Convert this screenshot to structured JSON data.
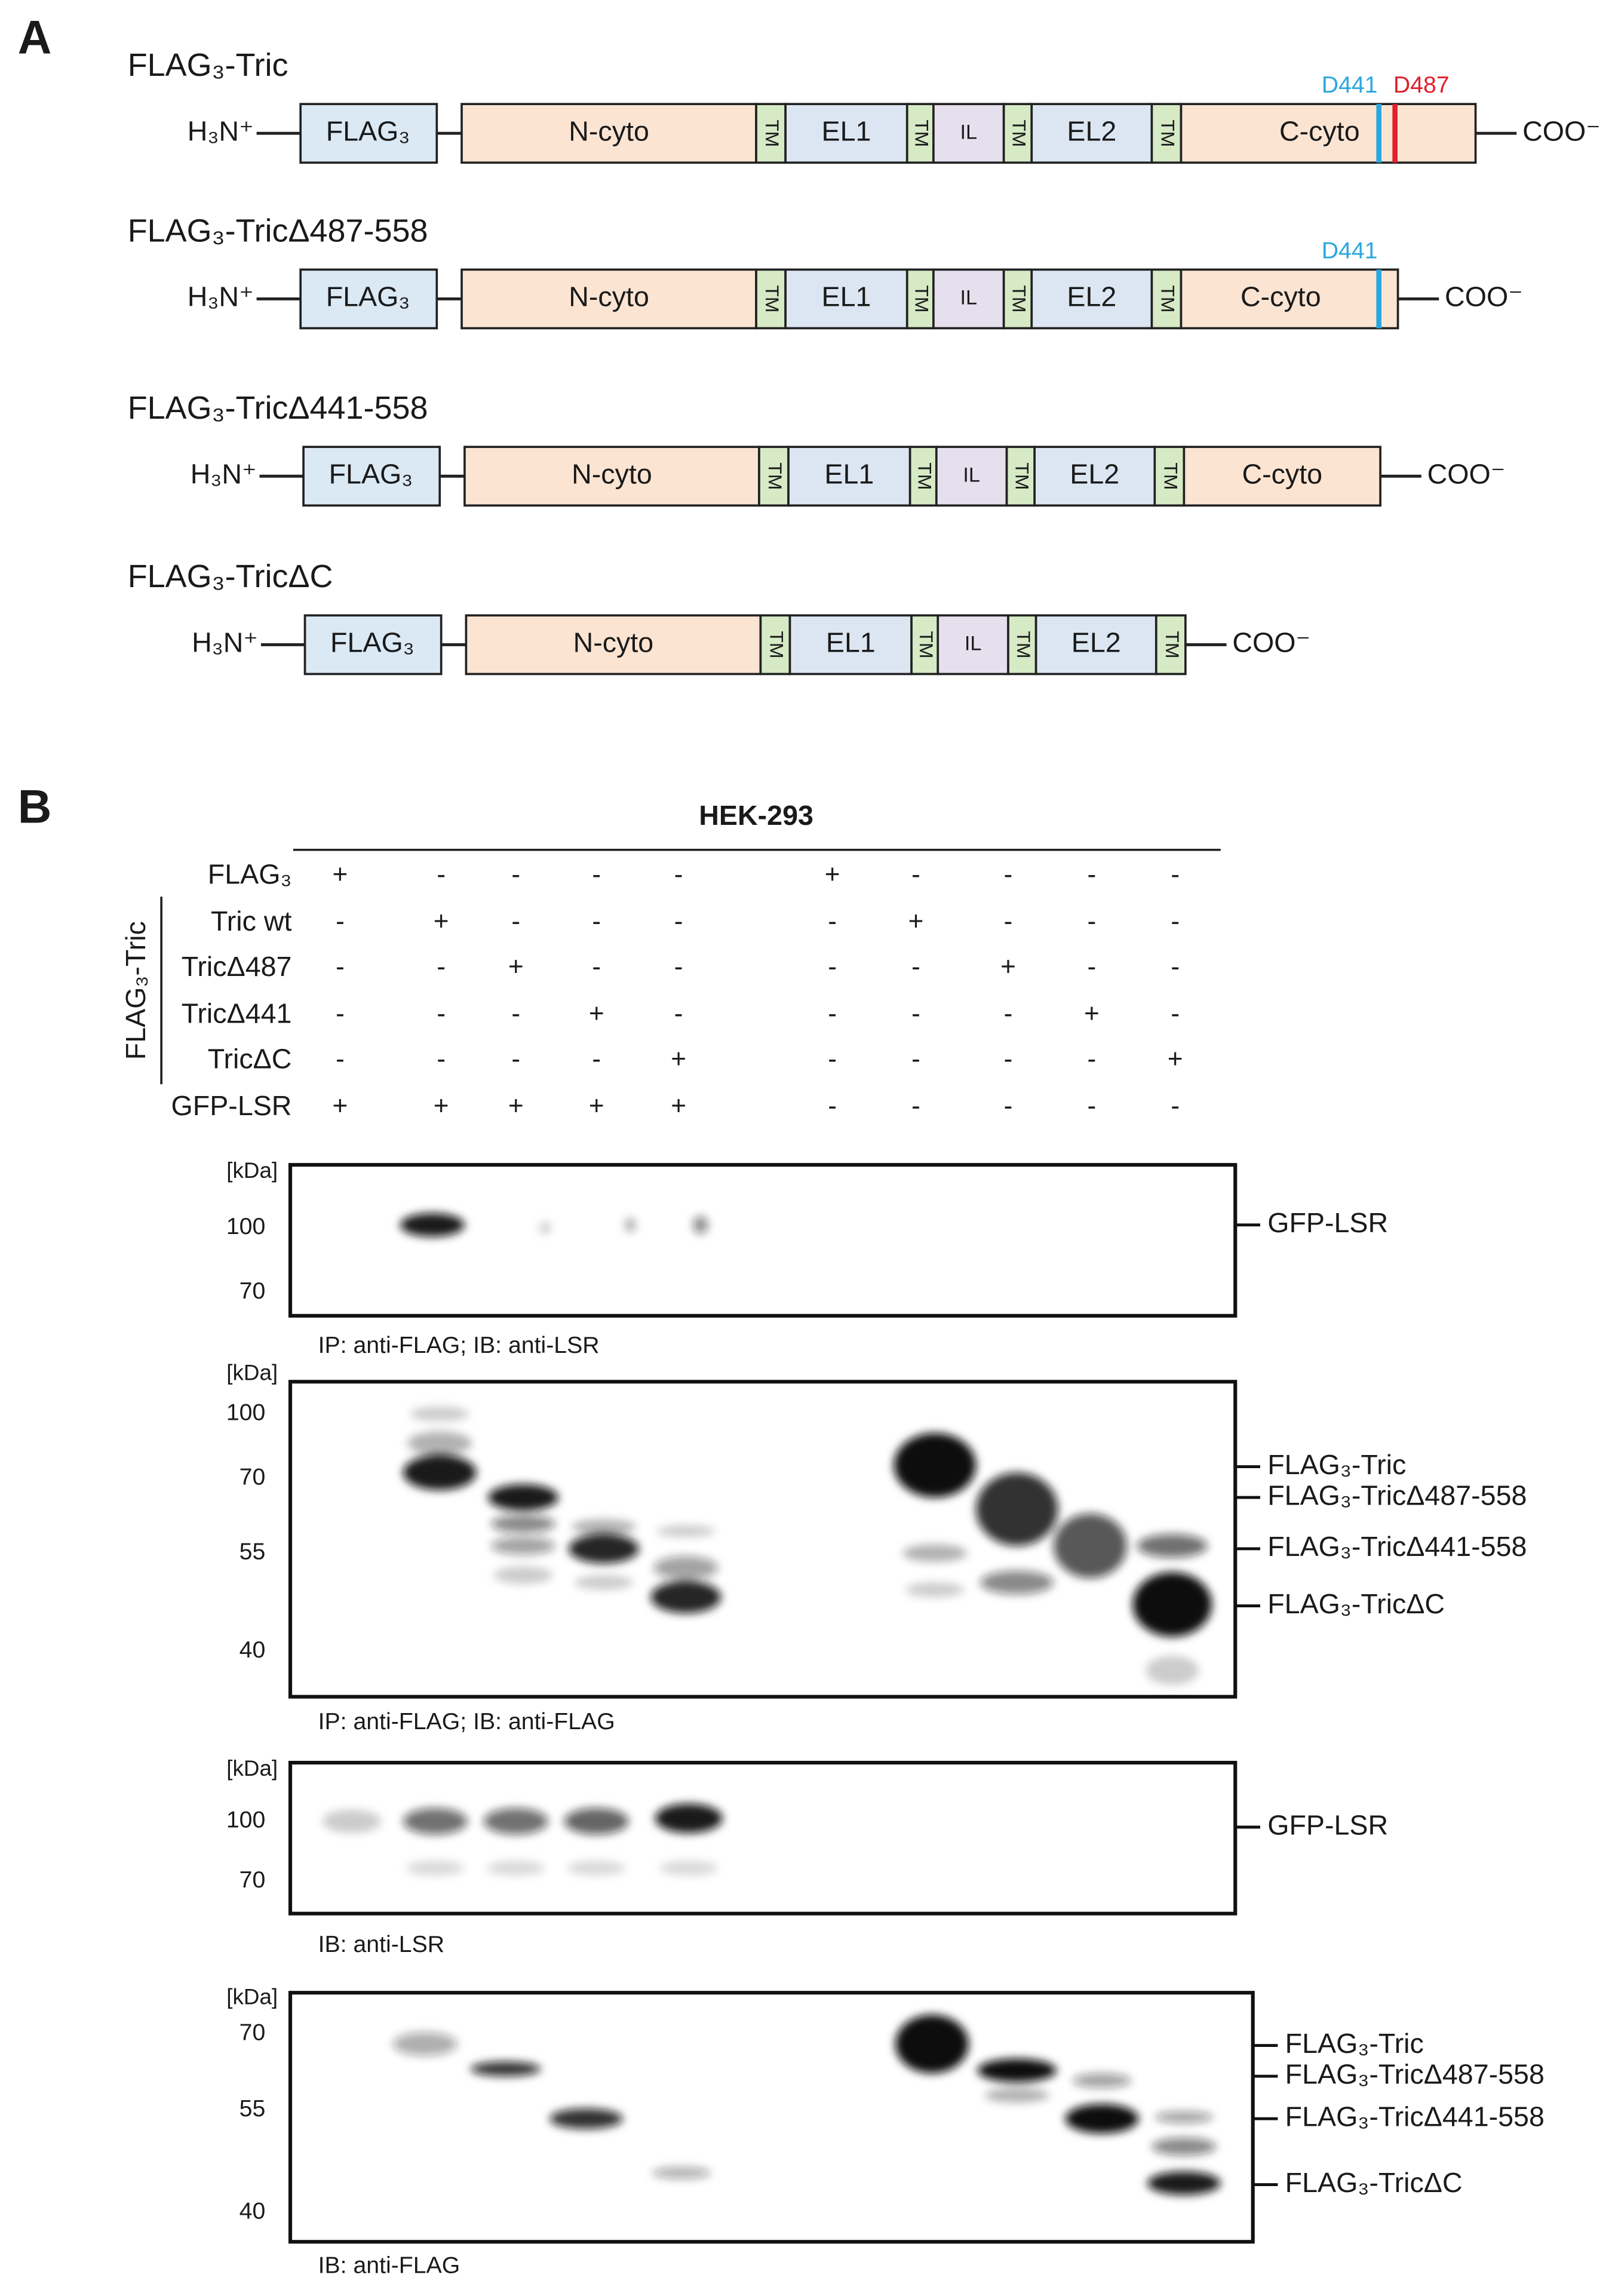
{
  "panel_a": {
    "label": "A",
    "constructs": [
      {
        "name": "FLAG₃-Tric",
        "n_terminus": "H₃N⁺",
        "c_terminus": "COO⁻",
        "domains": [
          "FLAG₃",
          "N-cyto",
          "TM",
          "EL1",
          "TM",
          "IL",
          "TM",
          "EL2",
          "TM",
          "C-cyto"
        ],
        "sites": [
          "D441",
          "D487"
        ]
      },
      {
        "name": "FLAG₃-TricΔ487-558",
        "n_terminus": "H₃N⁺",
        "c_terminus": "COO⁻",
        "domains": [
          "FLAG₃",
          "N-cyto",
          "TM",
          "EL1",
          "TM",
          "IL",
          "TM",
          "EL2",
          "TM",
          "C-cyto"
        ],
        "sites": [
          "D441"
        ]
      },
      {
        "name": "FLAG₃-TricΔ441-558",
        "n_terminus": "H₃N⁺",
        "c_terminus": "COO⁻",
        "domains": [
          "FLAG₃",
          "N-cyto",
          "TM",
          "EL1",
          "TM",
          "IL",
          "TM",
          "EL2",
          "TM",
          "C-cyto"
        ],
        "sites": []
      },
      {
        "name": "FLAG₃-TricΔC",
        "n_terminus": "H₃N⁺",
        "c_terminus": "COO⁻",
        "domains": [
          "FLAG₃",
          "N-cyto",
          "TM",
          "EL1",
          "TM",
          "IL",
          "TM",
          "EL2",
          "TM"
        ],
        "sites": []
      }
    ]
  },
  "panel_b": {
    "label": "B",
    "cell_line": "HEK-293",
    "group_label": "FLAG₃-Tric",
    "rows": [
      {
        "label": "FLAG₃",
        "cells": [
          "+",
          "-",
          "-",
          "-",
          "-",
          "+",
          "-",
          "-",
          "-",
          "-"
        ]
      },
      {
        "label": "Tric wt",
        "cells": [
          "-",
          "+",
          "-",
          "-",
          "-",
          "-",
          "+",
          "-",
          "-",
          "-"
        ]
      },
      {
        "label": "TricΔ487",
        "cells": [
          "-",
          "-",
          "+",
          "-",
          "-",
          "-",
          "-",
          "+",
          "-",
          "-"
        ]
      },
      {
        "label": "TricΔ441",
        "cells": [
          "-",
          "-",
          "-",
          "+",
          "-",
          "-",
          "-",
          "-",
          "+",
          "-"
        ]
      },
      {
        "label": "TricΔC",
        "cells": [
          "-",
          "-",
          "-",
          "-",
          "+",
          "-",
          "-",
          "-",
          "-",
          "+"
        ]
      },
      {
        "label": "GFP-LSR",
        "cells": [
          "+",
          "+",
          "+",
          "+",
          "+",
          "-",
          "-",
          "-",
          "-",
          "-"
        ]
      }
    ],
    "blots": [
      {
        "unit": "[kDa]",
        "ticks": [
          "100",
          "70"
        ],
        "caption": "IP: anti-FLAG; IB: anti-LSR",
        "bands": [
          "GFP-LSR"
        ]
      },
      {
        "unit": "[kDa]",
        "ticks": [
          "100",
          "70",
          "55",
          "40"
        ],
        "caption": "IP: anti-FLAG; IB: anti-FLAG",
        "bands": [
          "FLAG₃-Tric",
          "FLAG₃-TricΔ487-558",
          "FLAG₃-TricΔ441-558",
          "FLAG₃-TricΔC"
        ]
      },
      {
        "unit": "[kDa]",
        "ticks": [
          "100",
          "70"
        ],
        "caption": "IB: anti-LSR",
        "bands": [
          "GFP-LSR"
        ]
      },
      {
        "unit": "[kDa]",
        "ticks": [
          "70",
          "55",
          "40"
        ],
        "caption": "IB: anti-FLAG",
        "bands": [
          "FLAG₃-Tric",
          "FLAG₃-TricΔ487-558",
          "FLAG₃-TricΔ441-558",
          "FLAG₃-TricΔC"
        ]
      }
    ]
  }
}
